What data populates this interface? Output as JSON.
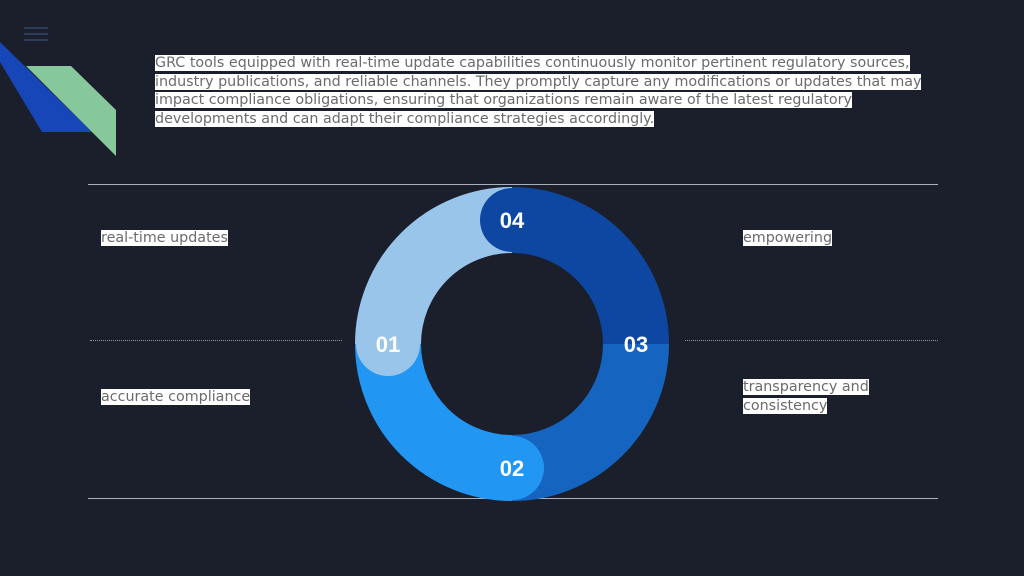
{
  "intro_text": "GRC tools equipped with real-time update capabilities continuously monitor pertinent regulatory sources, industry publications, and reliable channels. They promptly capture any modifications or updates that may impact compliance obligations, ensuring that organizations remain aware of the latest regulatory developments and can adapt their compliance strategies accordingly.",
  "labels": {
    "top_left": "real-time updates",
    "bottom_left": "accurate compliance",
    "top_right": "empowering",
    "bottom_right": "transparency and consistency"
  },
  "segments": [
    {
      "number": "01",
      "color": "#9ac5ea"
    },
    {
      "number": "02",
      "color": "#2196f3"
    },
    {
      "number": "03",
      "color": "#1565c0"
    },
    {
      "number": "04",
      "color": "#0d47a1"
    }
  ],
  "icons": {
    "menu": "hamburger-menu-icon"
  },
  "colors": {
    "background": "#1b1f2b",
    "accent_green": "#86c89c",
    "accent_blue": "#1646b8"
  }
}
